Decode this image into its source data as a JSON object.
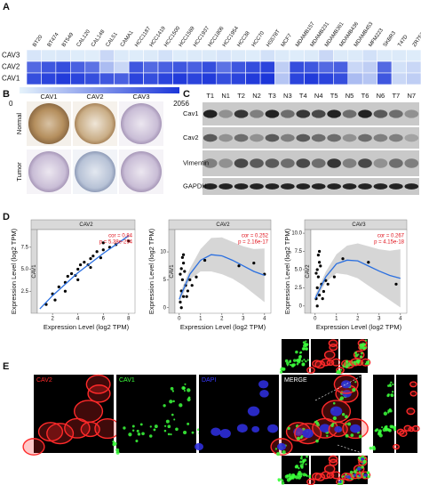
{
  "panel_labels": [
    "A",
    "B",
    "C",
    "D",
    "E"
  ],
  "heatmap": {
    "type": "heatmap",
    "rows": [
      "CAV3",
      "CAV2",
      "CAV1"
    ],
    "columns": [
      "BT20",
      "BT474",
      "BT549",
      "CAL120",
      "CAL148",
      "CAL51",
      "CAMA1",
      "HCC1187",
      "HCC1419",
      "HCC1500",
      "HCC1569",
      "HCC1937",
      "HCC1806",
      "HCC1954",
      "HCC38",
      "HCC70",
      "HS578T",
      "MCF7",
      "MDAMB157",
      "MDAMB231",
      "MDAMB361",
      "MDAMB436",
      "MDAMB453",
      "MFM223",
      "SKBR3",
      "T47D",
      "ZR7530"
    ],
    "values": [
      [
        150,
        100,
        120,
        80,
        60,
        300,
        100,
        80,
        100,
        200,
        80,
        100,
        100,
        150,
        100,
        80,
        200,
        100,
        80,
        100,
        300,
        100,
        100,
        200,
        100,
        100,
        80
      ],
      [
        1500,
        1700,
        1800,
        1600,
        1400,
        600,
        300,
        1700,
        1500,
        1600,
        1700,
        1600,
        1800,
        1400,
        1700,
        1800,
        1900,
        400,
        1800,
        1700,
        1500,
        1600,
        300,
        400,
        1500,
        200,
        300
      ],
      [
        1800,
        1900,
        2000,
        1900,
        1800,
        1700,
        1600,
        1900,
        1800,
        1900,
        2000,
        1900,
        2000,
        1800,
        1900,
        2000,
        2056,
        500,
        1900,
        2000,
        1900,
        1800,
        600,
        500,
        1700,
        300,
        400
      ]
    ],
    "colorbar": {
      "min": 0,
      "max": 2056
    },
    "colors": [
      "#e6f3fb",
      "#1c36d9"
    ]
  },
  "ihc": {
    "columns": [
      "CAV1",
      "CAV2",
      "CAV3"
    ],
    "rows": [
      "Normal",
      "Tumor"
    ]
  },
  "western_blot": {
    "lanes": [
      "T1",
      "N1",
      "T2",
      "N2",
      "T3",
      "N3",
      "T4",
      "N4",
      "T5",
      "N5",
      "T6",
      "N6",
      "T7",
      "N7"
    ],
    "proteins": [
      "Cav1",
      "Cav2",
      "Vimentin",
      "GAPDH"
    ]
  },
  "correlation": [
    {
      "type": "scatter",
      "strip": "CAV2",
      "side_strip": "CAV1",
      "x_label": "Expression Level (log2 TPM)",
      "y_label": "Expression Level (log2 TPM)",
      "annotations": [
        "cor = 0.84",
        "p = 5.38e-294"
      ],
      "x": [
        1.5,
        2,
        2.5,
        3,
        3.2,
        3.5,
        4,
        4.2,
        4.5,
        5,
        5.2,
        5.5,
        6,
        6.5,
        7,
        3,
        4,
        5,
        2.2,
        6,
        8,
        3.8,
        4.8,
        5.8
      ],
      "y": [
        1.0,
        2.2,
        3,
        3.5,
        4.2,
        4.5,
        5,
        5.5,
        5.8,
        6.2,
        6.5,
        7,
        7.2,
        7.5,
        7.8,
        2.5,
        3.8,
        5.2,
        1.5,
        8,
        8.2,
        4.3,
        5.5,
        6.3
      ],
      "fit": {
        "x": [
          1,
          2,
          4,
          6,
          8
        ],
        "y": [
          0.5,
          2,
          4.6,
          6.8,
          8.8
        ]
      },
      "xlim": [
        0.8,
        8.5
      ],
      "ylim": [
        0,
        9.5
      ],
      "xticks": [
        2,
        4,
        6,
        8
      ],
      "yticks": [
        2.5,
        {
          "value": 5,
          "label": "5.0"
        },
        7.5
      ]
    },
    {
      "type": "scatter",
      "strip": "CAV2",
      "side_strip": "CAV1",
      "x_label": "Expression Level (log2 TPM)",
      "y_label": "Expression Level (log2 TPM)",
      "annotations": [
        "cor = 0.252",
        "p = 2.16e-17"
      ],
      "x": [
        0.05,
        0.1,
        0.15,
        0.2,
        0.1,
        0.3,
        0.05,
        0.2,
        0.4,
        0.5,
        0.1,
        0.25,
        0.35,
        0.6,
        0.15,
        1.2,
        2.8,
        3.5,
        4,
        0.2,
        0.8
      ],
      "y": [
        1,
        3,
        5,
        2,
        7,
        4,
        6,
        8,
        3,
        5,
        0,
        6.5,
        2,
        4,
        9,
        8.5,
        7.5,
        8,
        6,
        9.5,
        5.5
      ],
      "fit": {
        "x": [
          0,
          0.5,
          1,
          1.5,
          2,
          2.5,
          3,
          3.5,
          4
        ],
        "y": [
          1.5,
          6,
          8.5,
          9.5,
          9.3,
          8.5,
          7.5,
          6.5,
          5.8
        ]
      },
      "fit_lower": [
        0.8,
        5,
        6.5,
        6.5,
        6,
        5.2,
        4,
        2.5,
        1
      ],
      "fit_upper": [
        2.2,
        7,
        10.5,
        12.5,
        12.6,
        11.8,
        11,
        10.5,
        10.6
      ],
      "xlim": [
        -0.2,
        4.3
      ],
      "ylim": [
        -1,
        14
      ],
      "xticks": [
        0,
        1,
        2,
        3,
        4
      ],
      "yticks": [
        0,
        5,
        10
      ]
    },
    {
      "type": "scatter",
      "strip": "CAV3",
      "side_strip": "CAV2",
      "x_label": "Expression Level (log2 TPM)",
      "y_label": "Expression Level (log2 TPM)",
      "annotations": [
        "cor = 0.267",
        "p = 4.15e-18"
      ],
      "x": [
        0.05,
        0.1,
        0.15,
        0.2,
        0.1,
        0.3,
        0.05,
        0.2,
        0.4,
        0.5,
        0.1,
        0.25,
        0.35,
        0.6,
        0.15,
        1.3,
        2.5,
        3.8,
        0.2,
        0.9
      ],
      "y": [
        1,
        2.5,
        4,
        1.5,
        5,
        3,
        4.5,
        6,
        2,
        3.5,
        0,
        5.5,
        1,
        3,
        7,
        6.5,
        6,
        3,
        7.5,
        4
      ],
      "fit": {
        "x": [
          0,
          0.5,
          1,
          1.5,
          2,
          2.5,
          3,
          3.5,
          4
        ],
        "y": [
          1,
          4,
          5.8,
          6.3,
          6.2,
          5.5,
          4.8,
          4.2,
          3.8
        ]
      },
      "fit_lower": [
        0.5,
        3.3,
        4.5,
        4.3,
        3.8,
        2.8,
        1.8,
        0.8,
        -0.2
      ],
      "fit_upper": [
        1.5,
        4.7,
        7.1,
        8.3,
        8.6,
        8.2,
        7.8,
        7.6,
        7.8
      ],
      "xlim": [
        -0.2,
        4.3
      ],
      "ylim": [
        -1,
        10.5
      ],
      "xticks": [
        0,
        1,
        2,
        3,
        4
      ],
      "yticks": [
        0,
        2.5,
        {
          "value": 5,
          "label": "5.0"
        },
        7.5,
        {
          "value": 10,
          "label": "10.0"
        }
      ]
    }
  ],
  "immunofluorescence": {
    "channels": [
      {
        "name": "CAV2",
        "color": "#ff2a2a"
      },
      {
        "name": "CAV1",
        "color": "#3cff3c"
      },
      {
        "name": "DAPI",
        "color": "#3a3aff"
      },
      {
        "name": "MERGE",
        "color": "#ffffff"
      }
    ]
  }
}
